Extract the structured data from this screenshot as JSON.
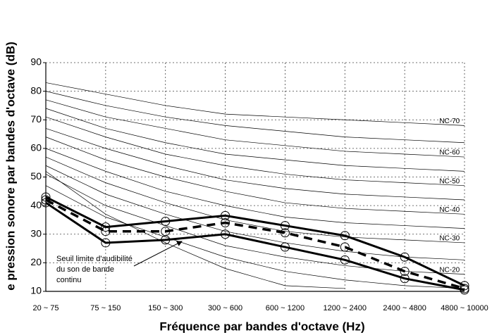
{
  "chart_data": {
    "type": "line",
    "xlabel": "Fréquence par bandes d'octave (Hz)",
    "ylabel": "e pression sonore par bandes d'octave (dB)",
    "categories": [
      "20 ~ 75",
      "75 ~ 150",
      "150 ~ 300",
      "300 ~ 600",
      "600 ~ 1200",
      "1200 ~ 2400",
      "2400 ~ 4800",
      "4800 ~ 10000"
    ],
    "ylim": [
      10,
      90
    ],
    "yticks": [
      10,
      20,
      30,
      40,
      50,
      60,
      70,
      80,
      90
    ],
    "grid": true,
    "annotation": [
      "Seuil limite d'audibilité",
      "du son de bande",
      "continu"
    ],
    "threshold": {
      "color": "#000",
      "values": [
        52,
        37,
        27,
        18,
        12,
        11,
        null,
        null
      ]
    },
    "nc_curves": [
      {
        "name": "NC-70",
        "values": [
          83,
          79,
          75,
          72,
          71,
          70,
          69,
          68
        ]
      },
      {
        "values": [
          80,
          75,
          71,
          68,
          66,
          64,
          63,
          62
        ]
      },
      {
        "name": "NC-60",
        "values": [
          77,
          71,
          67,
          63,
          61,
          59,
          58,
          57
        ]
      },
      {
        "values": [
          74,
          67,
          62,
          58,
          56,
          54,
          53,
          52
        ]
      },
      {
        "name": "NC-50",
        "values": [
          71,
          64,
          58,
          54,
          51,
          49,
          48,
          47
        ]
      },
      {
        "values": [
          67,
          60,
          54,
          49,
          46,
          44,
          43,
          42
        ]
      },
      {
        "name": "NC-40",
        "values": [
          64,
          56,
          50,
          45,
          41,
          39,
          38,
          37
        ]
      },
      {
        "values": [
          60,
          52,
          45,
          40,
          36,
          34,
          33,
          32
        ]
      },
      {
        "name": "NC-30",
        "values": [
          57,
          48,
          41,
          35,
          31,
          29,
          28,
          27
        ]
      },
      {
        "values": [
          54,
          44,
          37,
          31,
          27,
          24,
          22,
          21
        ]
      },
      {
        "name": "NC-20",
        "values": [
          51,
          40,
          33,
          26,
          22,
          19,
          17,
          16
        ]
      },
      {
        "values": [
          47,
          36,
          29,
          22,
          17,
          14,
          12,
          11
        ]
      }
    ],
    "series": [
      {
        "color": "#000",
        "dash": false,
        "values": [
          43,
          32.5,
          34.5,
          36.5,
          33,
          29.5,
          22,
          12
        ]
      },
      {
        "color": "#000",
        "dash": true,
        "values": [
          42,
          31,
          31,
          34,
          30.5,
          25.5,
          17,
          11
        ]
      },
      {
        "color": "#000",
        "dash": false,
        "values": [
          41,
          27,
          28,
          30,
          25.5,
          21,
          14.5,
          10.5
        ]
      }
    ]
  }
}
